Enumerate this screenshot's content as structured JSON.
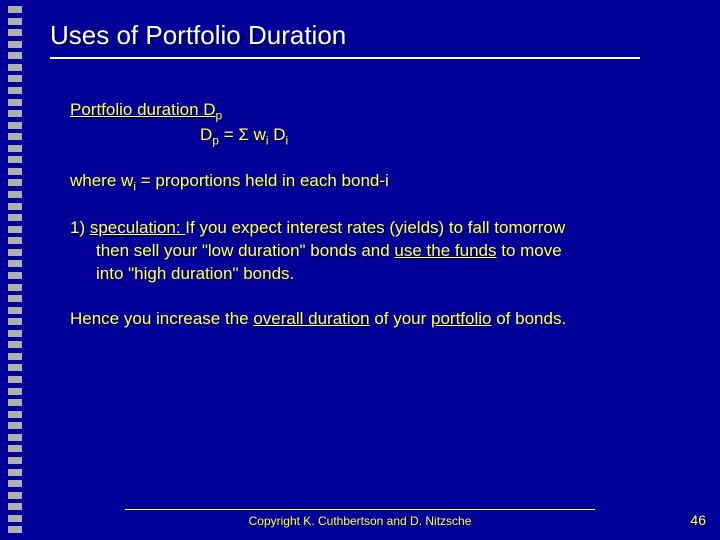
{
  "background_color": "#000099",
  "title_color": "#ffffff",
  "text_color": "#ffff66",
  "tick_color": "#b0b0b0",
  "title": "Uses of Portfolio Duration",
  "heading": "Portfolio duration D",
  "heading_sub": "p",
  "formula_lhs": "D",
  "formula_lhs_sub": "p",
  "formula_mid": " = Σ w",
  "formula_sub1": "i",
  "formula_mid2": " D",
  "formula_sub2": "i",
  "where_prefix": "where   w",
  "where_sub": "i",
  "where_rest": " = proportions held in each bond-i",
  "spec_num": "1) ",
  "spec_label": "speculation:  ",
  "spec_line1_rest": "If you expect interest rates (yields) to fall tomorrow",
  "spec_line2a": "then sell your \"low duration\" bonds and ",
  "spec_line2b": "use the funds",
  "spec_line2c": " to move",
  "spec_line3": "into \"high duration\" bonds.",
  "hence_a": "Hence you increase the ",
  "hence_b": "overall duration",
  "hence_c": " of your ",
  "hence_d": "portfolio",
  "hence_e": " of bonds.",
  "copyright": "Copyright K. Cuthbertson and D. Nitzsche",
  "page_number": "46",
  "tick_count": 46
}
